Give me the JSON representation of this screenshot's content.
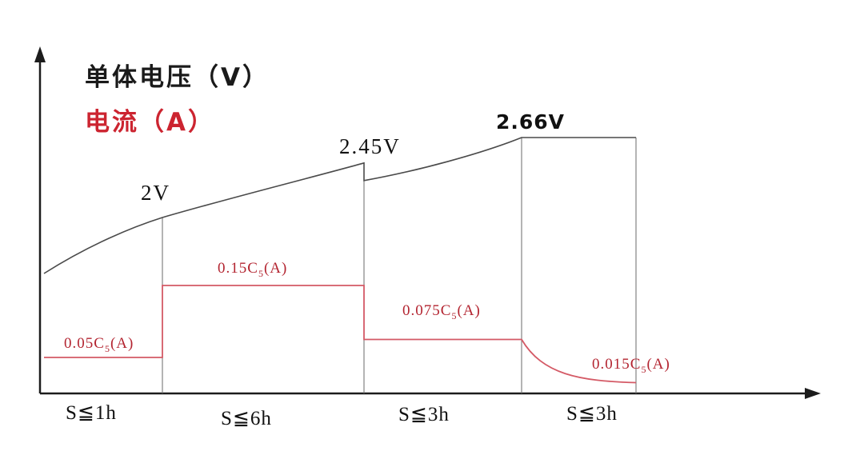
{
  "page": {
    "background": "#ffffff"
  },
  "chart_data": {
    "type": "line",
    "title": "单体电压（V）",
    "series_labels": {
      "voltage": "单体电压（V）",
      "current": "电流（A）"
    },
    "colors": {
      "voltage_curve": "#4a4a4a",
      "current_curve": "#d45a66",
      "voltage_title": "#1a1a1a",
      "current_title": "#cc2430",
      "current_label": "#b32430",
      "axis": "#1c1c1c",
      "separator": "#6a6a6a"
    },
    "x_axis": {
      "stage_labels": [
        "S≦1h",
        "S≦6h",
        "S≦3h",
        "S≦3h"
      ]
    },
    "stages": [
      {
        "duration_label": "S≦1h",
        "current_level_c5": 0.05,
        "current_label": {
          "prefix": "0.05C",
          "sub": "5",
          "suffix": "(A)"
        },
        "voltage_end": 2.0,
        "voltage_end_label": "2V"
      },
      {
        "duration_label": "S≦6h",
        "current_level_c5": 0.15,
        "current_label": {
          "prefix": "0.15C",
          "sub": "5",
          "suffix": "(A)"
        },
        "voltage_end": 2.45,
        "voltage_end_label": "2.45V"
      },
      {
        "duration_label": "S≦3h",
        "current_level_c5": 0.075,
        "current_label": {
          "prefix": "0.075C",
          "sub": "5",
          "suffix": "(A)"
        },
        "voltage_end": 2.66,
        "voltage_end_label": "2.66V"
      },
      {
        "duration_label": "S≦3h",
        "current_level_c5": 0.075,
        "current_end_level_c5": 0.015,
        "current_label": {
          "prefix": "0.015C",
          "sub": "5",
          "suffix": "(A)"
        },
        "voltage_end": 2.66,
        "voltage_end_label": ""
      }
    ]
  }
}
